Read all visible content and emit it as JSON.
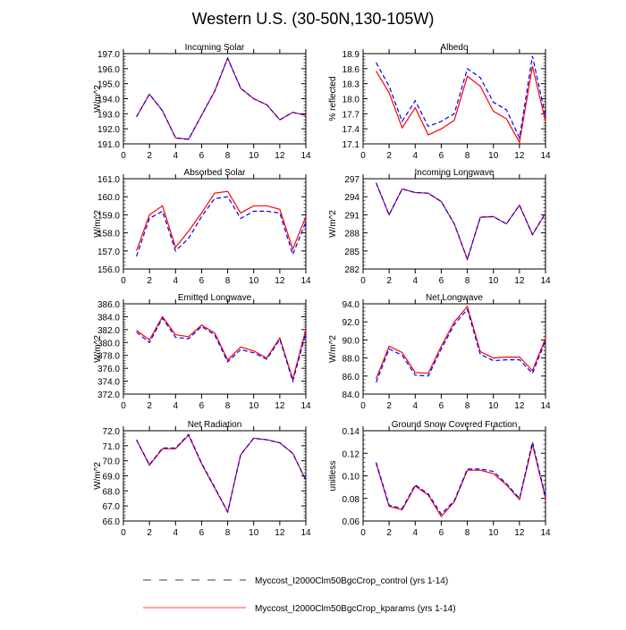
{
  "chart_data": {
    "title": "Western U.S. (30-50N,130-105W)",
    "type": "line",
    "legend": {
      "placement": "bottom",
      "entries": [
        {
          "name": "Myccost_I2000Clm50BgcCrop_control (yrs 1-14)",
          "color": "#0000ff",
          "style": "dashed"
        },
        {
          "name": "Myccost_I2000Clm50BgcCrop_kparams (yrs 1-14)",
          "color": "#ff0000",
          "style": "solid"
        }
      ]
    },
    "x": [
      1,
      2,
      3,
      4,
      5,
      6,
      7,
      8,
      9,
      10,
      11,
      12,
      13,
      14
    ],
    "xlim": [
      0,
      14
    ],
    "xticks": [
      0,
      2,
      4,
      6,
      8,
      10,
      12,
      14
    ],
    "panels": [
      {
        "title": "Incoming Solar",
        "ylabel": "W/m^2",
        "ylim": [
          191,
          197
        ],
        "yticks": [
          "191.0",
          "192.0",
          "193.0",
          "194.0",
          "195.0",
          "196.0",
          "197.0"
        ],
        "control": [
          192.8,
          194.3,
          193.2,
          191.4,
          191.3,
          192.9,
          194.5,
          196.7,
          194.7,
          194.0,
          193.6,
          192.6,
          193.1,
          192.9
        ],
        "kparams": [
          192.8,
          194.3,
          193.2,
          191.4,
          191.3,
          192.9,
          194.5,
          196.7,
          194.7,
          194.0,
          193.6,
          192.6,
          193.1,
          192.9
        ]
      },
      {
        "title": "Albedo",
        "ylabel": "% reflected",
        "ylim": [
          17.1,
          18.9
        ],
        "yticks": [
          "17.1",
          "17.4",
          "17.7",
          "18.0",
          "18.3",
          "18.6",
          "18.9"
        ],
        "control": [
          18.72,
          18.25,
          17.55,
          17.96,
          17.45,
          17.55,
          17.7,
          18.6,
          18.42,
          17.93,
          17.78,
          17.22,
          18.85,
          17.65
        ],
        "kparams": [
          18.55,
          18.12,
          17.42,
          17.82,
          17.28,
          17.4,
          17.57,
          18.45,
          18.25,
          17.75,
          17.6,
          17.13,
          18.65,
          17.55
        ]
      },
      {
        "title": "Absorbed Solar",
        "ylabel": "W/m^2",
        "ylim": [
          156,
          161
        ],
        "yticks": [
          "156.0",
          "157.0",
          "158.0",
          "159.0",
          "160.0",
          "161.0"
        ],
        "control": [
          156.7,
          158.8,
          159.2,
          157.0,
          157.7,
          158.9,
          159.9,
          160.0,
          158.8,
          159.2,
          159.2,
          159.1,
          156.8,
          158.6
        ],
        "kparams": [
          157.0,
          159.0,
          159.5,
          157.2,
          158.1,
          159.1,
          160.2,
          160.3,
          159.1,
          159.5,
          159.5,
          159.3,
          157.1,
          158.9
        ]
      },
      {
        "title": "Incoming Longwave",
        "ylabel": "W/m^2",
        "ylim": [
          282,
          297
        ],
        "yticks": [
          "282",
          "285",
          "288",
          "291",
          "294",
          "297"
        ],
        "control": [
          296.3,
          291.0,
          295.3,
          294.7,
          294.6,
          293.2,
          289.5,
          283.6,
          290.6,
          290.7,
          289.5,
          292.6,
          287.7,
          291.3
        ],
        "kparams": [
          296.3,
          291.0,
          295.3,
          294.7,
          294.6,
          293.2,
          289.5,
          283.6,
          290.6,
          290.7,
          289.5,
          292.6,
          287.7,
          291.3
        ]
      },
      {
        "title": "Emitted Longwave",
        "ylabel": "W/m^2",
        "ylim": [
          372,
          386
        ],
        "yticks": [
          "372.0",
          "374.0",
          "376.0",
          "378.0",
          "380.0",
          "382.0",
          "384.0",
          "386.0"
        ],
        "control": [
          381.6,
          380.0,
          383.8,
          380.8,
          380.6,
          382.5,
          381.2,
          377.0,
          378.9,
          378.4,
          377.4,
          380.5,
          374.0,
          381.5
        ],
        "kparams": [
          381.9,
          380.4,
          384.0,
          381.2,
          380.9,
          382.7,
          381.5,
          377.3,
          379.3,
          378.7,
          377.6,
          380.7,
          374.3,
          382.0
        ]
      },
      {
        "title": "Net Longwave",
        "ylabel": "W/m^2",
        "ylim": [
          84,
          94
        ],
        "yticks": [
          "84.0",
          "86.0",
          "88.0",
          "90.0",
          "92.0",
          "94.0"
        ],
        "control": [
          85.3,
          89.0,
          88.3,
          86.1,
          86.0,
          89.0,
          91.7,
          93.4,
          88.4,
          87.7,
          87.8,
          87.8,
          86.3,
          89.9
        ],
        "kparams": [
          85.7,
          89.3,
          88.6,
          86.4,
          86.3,
          89.3,
          92.0,
          93.7,
          88.7,
          88.0,
          88.1,
          88.1,
          86.6,
          90.2
        ]
      },
      {
        "title": "Net Radiation",
        "ylabel": "W/m^2",
        "ylim": [
          66,
          72
        ],
        "yticks": [
          "66.0",
          "67.0",
          "68.0",
          "69.0",
          "70.0",
          "71.0",
          "72.0"
        ],
        "control": [
          71.4,
          69.75,
          70.85,
          70.85,
          71.75,
          69.85,
          68.25,
          66.6,
          70.4,
          71.5,
          71.4,
          71.2,
          70.5,
          68.7
        ],
        "kparams": [
          71.4,
          69.7,
          70.8,
          70.8,
          71.7,
          69.8,
          68.2,
          66.6,
          70.4,
          71.5,
          71.4,
          71.2,
          70.5,
          68.7
        ]
      },
      {
        "title": "Ground Snow Covered Fraction",
        "ylabel": "unitless",
        "ylim": [
          0.06,
          0.14
        ],
        "yticks": [
          "0.06",
          "0.08",
          "0.10",
          "0.12",
          "0.14"
        ],
        "control": [
          0.112,
          0.074,
          0.071,
          0.092,
          0.084,
          0.066,
          0.078,
          0.106,
          0.106,
          0.104,
          0.093,
          0.08,
          0.13,
          0.081
        ],
        "kparams": [
          0.111,
          0.073,
          0.07,
          0.091,
          0.083,
          0.064,
          0.077,
          0.105,
          0.105,
          0.102,
          0.092,
          0.079,
          0.128,
          0.08
        ]
      }
    ]
  }
}
